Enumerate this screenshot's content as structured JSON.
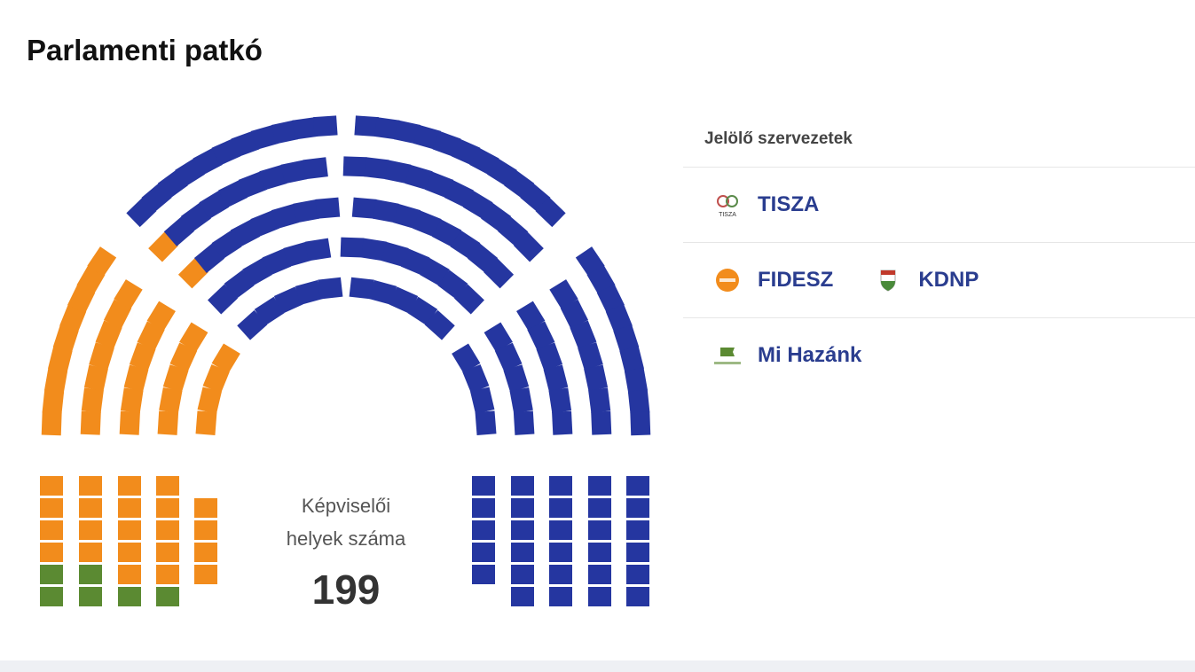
{
  "title": "Parlamenti patkó",
  "center": {
    "line1": "Képviselői",
    "line2": "helyek száma",
    "total": "199"
  },
  "legend": {
    "header": "Jelölő szervezetek",
    "rows": [
      [
        {
          "name": "TISZA",
          "icon": "tisza-logo-icon",
          "logo_text": "TISZA"
        }
      ],
      [
        {
          "name": "FIDESZ",
          "icon": "fidesz-logo-icon"
        },
        {
          "name": "KDNP",
          "icon": "kdnp-logo-icon"
        }
      ],
      [
        {
          "name": "Mi Hazánk",
          "icon": "mi-hazank-logo-icon"
        }
      ]
    ]
  },
  "chart_data": {
    "type": "parliament",
    "total_seats": 199,
    "parties": [
      {
        "name": "Mi Hazánk",
        "seats": 6,
        "color": "#5b8a32"
      },
      {
        "name": "FIDESZ-KDNP",
        "seats": 55,
        "color": "#f28c1c"
      },
      {
        "name": "TISZA",
        "seats": 138,
        "color": "#2536a0"
      }
    ]
  }
}
